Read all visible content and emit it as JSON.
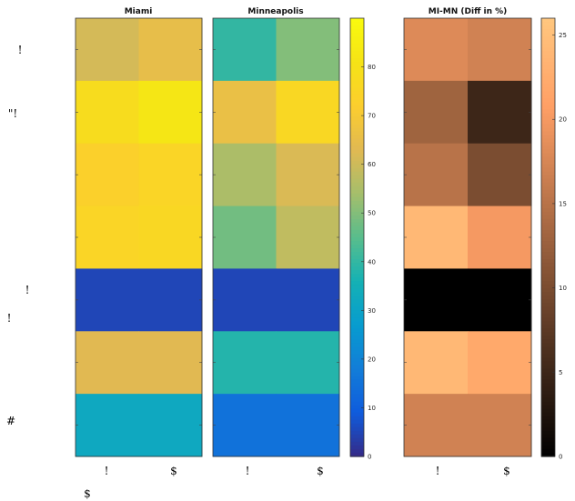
{
  "chart_data": [
    {
      "type": "heatmap",
      "title": "Miami",
      "colormap": "parula",
      "clim": [
        0,
        90
      ],
      "x_tick_labels": [
        "!",
        "$"
      ],
      "values": [
        [
          61,
          65
        ],
        [
          78,
          82
        ],
        [
          73,
          75
        ],
        [
          75,
          76
        ],
        [
          5,
          5
        ],
        [
          63,
          63
        ],
        [
          32,
          32
        ]
      ]
    },
    {
      "type": "heatmap",
      "title": "Minneapolis",
      "colormap": "parula",
      "clim": [
        0,
        90
      ],
      "x_tick_labels": [
        "!",
        "$"
      ],
      "values": [
        [
          40,
          50
        ],
        [
          66,
          76
        ],
        [
          55,
          62
        ],
        [
          48,
          58
        ],
        [
          5,
          5
        ],
        [
          38,
          38
        ],
        [
          15,
          15
        ]
      ],
      "colorbar_ticks": [
        0,
        10,
        20,
        30,
        40,
        50,
        60,
        70,
        80
      ]
    },
    {
      "type": "heatmap",
      "title": "MI-MN (Diff in %)",
      "colormap": "copper",
      "clim": [
        0,
        26
      ],
      "x_tick_labels": [
        "!",
        "$"
      ],
      "values": [
        [
          18,
          17
        ],
        [
          13,
          5
        ],
        [
          15,
          10
        ],
        [
          24,
          20
        ],
        [
          0,
          0
        ],
        [
          24,
          22
        ],
        [
          17,
          17
        ]
      ],
      "colorbar_ticks": [
        0,
        5,
        10,
        15,
        20,
        25
      ]
    }
  ],
  "row_labels": [
    {
      "text": "!",
      "row": 0
    },
    {
      "text": "\"!",
      "row": 1
    },
    {
      "text": "!",
      "row": 4
    },
    {
      "text": "!",
      "row": 4
    },
    {
      "text": "#",
      "row": 6
    }
  ],
  "x_tick_labels": [
    "!",
    "$",
    "!",
    "$",
    "!",
    "$"
  ],
  "bottom_label": "$"
}
